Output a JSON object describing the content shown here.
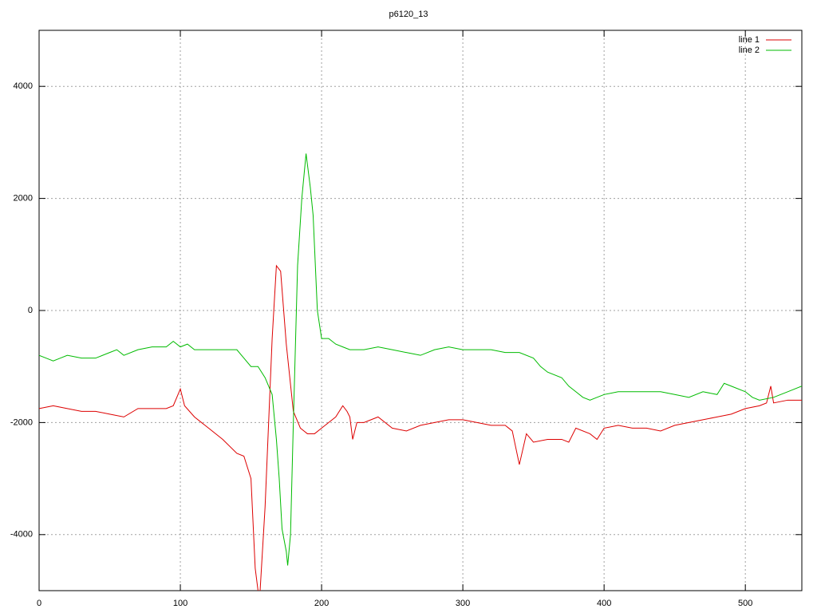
{
  "chart_data": {
    "type": "line",
    "title": "p6120_13",
    "xlim": [
      0,
      540
    ],
    "xticks": [
      0,
      100,
      200,
      300,
      400,
      500
    ],
    "ylim": [
      -5000,
      5000
    ],
    "yticks": [
      -4000,
      -2000,
      0,
      2000,
      4000
    ],
    "grid": true,
    "legend": "top-right",
    "series": [
      {
        "name": "line 1",
        "color": "#dd0000",
        "x": [
          0,
          10,
          20,
          30,
          40,
          50,
          60,
          70,
          80,
          90,
          95,
          100,
          103,
          110,
          120,
          130,
          140,
          145,
          150,
          153,
          156,
          160,
          165,
          168,
          171,
          175,
          180,
          185,
          190,
          195,
          200,
          205,
          210,
          215,
          218,
          220,
          222,
          225,
          230,
          240,
          250,
          260,
          270,
          280,
          290,
          300,
          310,
          320,
          330,
          335,
          340,
          345,
          350,
          360,
          370,
          375,
          380,
          390,
          395,
          400,
          410,
          420,
          430,
          440,
          450,
          460,
          470,
          480,
          490,
          500,
          510,
          515,
          518,
          520,
          530,
          540
        ],
        "values": [
          -1750,
          -1700,
          -1750,
          -1800,
          -1800,
          -1850,
          -1900,
          -1750,
          -1750,
          -1750,
          -1700,
          -1400,
          -1700,
          -1900,
          -2100,
          -2300,
          -2550,
          -2600,
          -3000,
          -4600,
          -5200,
          -3500,
          -500,
          800,
          700,
          -600,
          -1800,
          -2100,
          -2200,
          -2200,
          -2100,
          -2000,
          -1900,
          -1700,
          -1800,
          -1900,
          -2300,
          -2000,
          -2000,
          -1900,
          -2100,
          -2150,
          -2050,
          -2000,
          -1950,
          -1950,
          -2000,
          -2050,
          -2050,
          -2150,
          -2750,
          -2200,
          -2350,
          -2300,
          -2300,
          -2350,
          -2100,
          -2200,
          -2300,
          -2100,
          -2050,
          -2100,
          -2100,
          -2150,
          -2050,
          -2000,
          -1950,
          -1900,
          -1850,
          -1750,
          -1700,
          -1650,
          -1350,
          -1650,
          -1600,
          -1600
        ]
      },
      {
        "name": "line 2",
        "color": "#00bb00",
        "x": [
          0,
          5,
          10,
          15,
          20,
          30,
          40,
          50,
          55,
          60,
          70,
          80,
          90,
          95,
          100,
          105,
          110,
          120,
          130,
          140,
          145,
          150,
          155,
          160,
          165,
          168,
          170,
          172,
          175,
          176,
          178,
          180,
          183,
          186,
          189,
          192,
          194,
          197,
          200,
          205,
          210,
          215,
          220,
          230,
          240,
          250,
          260,
          270,
          280,
          290,
          300,
          310,
          320,
          330,
          340,
          350,
          355,
          360,
          370,
          375,
          380,
          385,
          390,
          395,
          400,
          410,
          420,
          430,
          440,
          450,
          460,
          470,
          480,
          485,
          490,
          500,
          505,
          510,
          520,
          530,
          540
        ],
        "values": [
          -800,
          -850,
          -900,
          -850,
          -800,
          -850,
          -850,
          -750,
          -700,
          -800,
          -700,
          -650,
          -650,
          -550,
          -650,
          -600,
          -700,
          -700,
          -700,
          -700,
          -850,
          -1000,
          -1000,
          -1200,
          -1500,
          -2300,
          -3000,
          -3900,
          -4300,
          -4550,
          -4000,
          -2000,
          800,
          2000,
          2800,
          2200,
          1700,
          0,
          -500,
          -500,
          -600,
          -650,
          -700,
          -700,
          -650,
          -700,
          -750,
          -800,
          -700,
          -650,
          -700,
          -700,
          -700,
          -750,
          -750,
          -850,
          -1000,
          -1100,
          -1200,
          -1350,
          -1450,
          -1550,
          -1600,
          -1550,
          -1500,
          -1450,
          -1450,
          -1450,
          -1450,
          -1500,
          -1550,
          -1450,
          -1500,
          -1300,
          -1350,
          -1450,
          -1550,
          -1600,
          -1550,
          -1450,
          -1350
        ]
      }
    ]
  }
}
